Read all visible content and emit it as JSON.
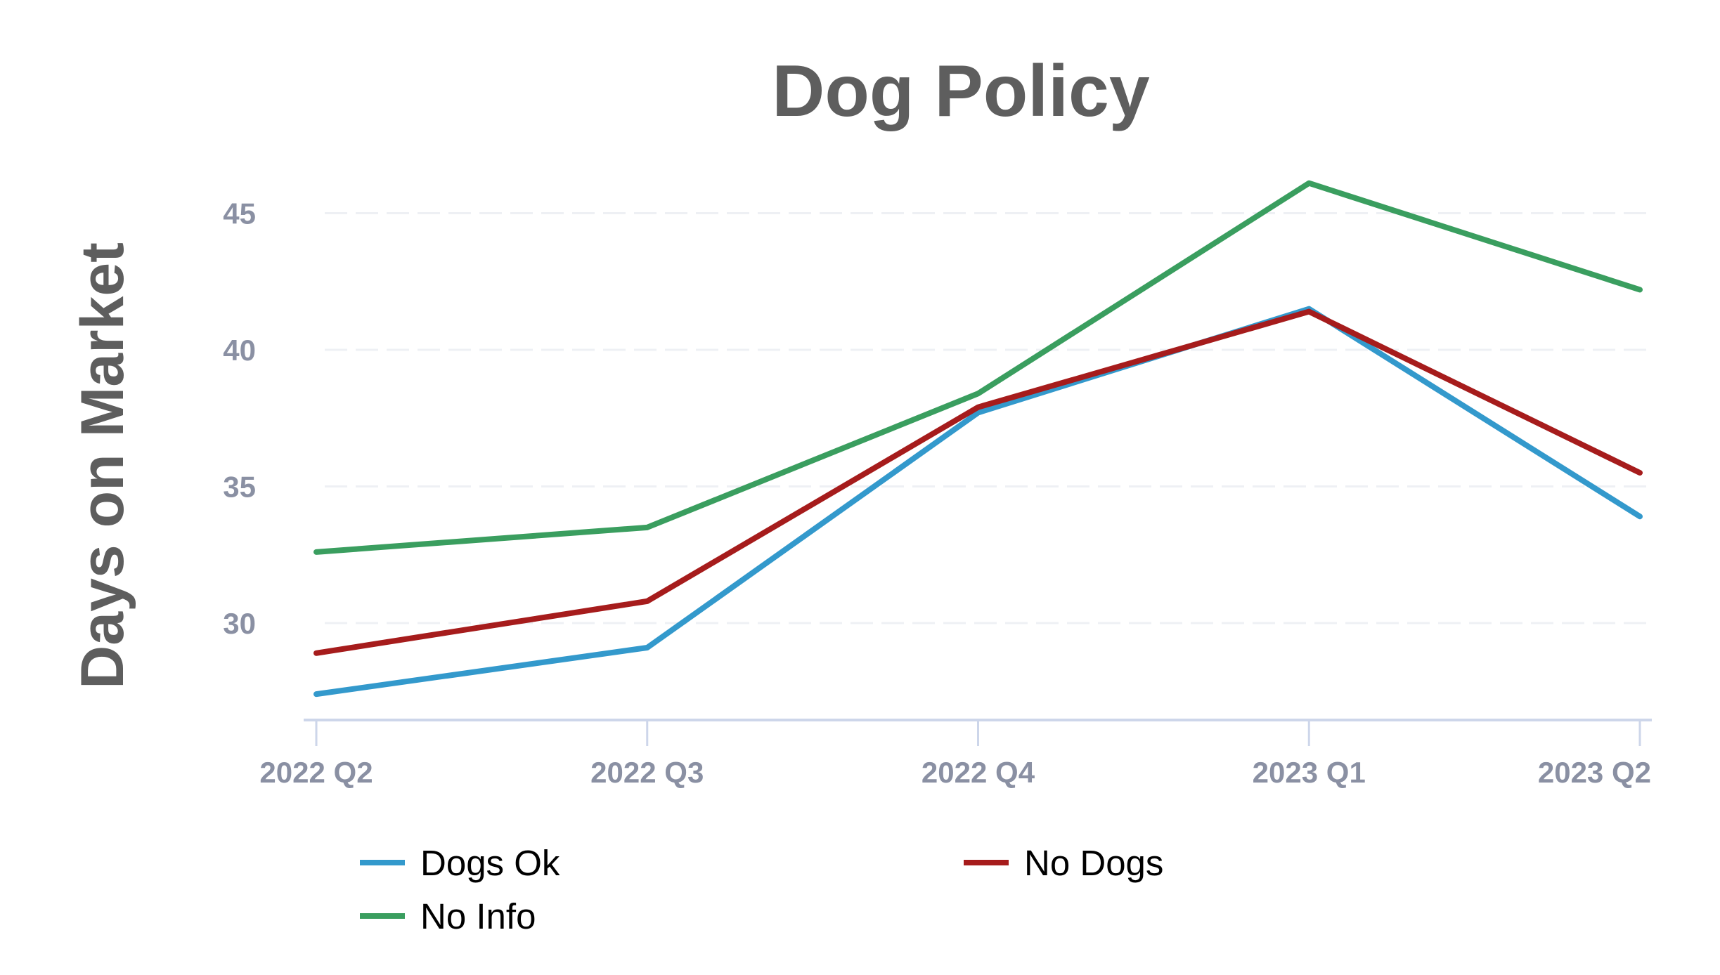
{
  "chart_data": {
    "type": "line",
    "title": "Dog Policy",
    "xlabel": "",
    "ylabel": "Days on Market",
    "categories": [
      "2022 Q2",
      "2022 Q3",
      "2022 Q4",
      "2023 Q1",
      "2023 Q2"
    ],
    "yticks": [
      30,
      35,
      40,
      45
    ],
    "ylim": [
      26.45,
      46.5
    ],
    "grid": true,
    "legend_position": "bottom",
    "series": [
      {
        "name": "Dogs Ok",
        "color": "#3399cc",
        "values": [
          27.4,
          29.1,
          37.7,
          41.5,
          33.9
        ]
      },
      {
        "name": "No Dogs",
        "color": "#a61c1c",
        "values": [
          28.9,
          30.8,
          37.9,
          41.4,
          35.5
        ]
      },
      {
        "name": "No Info",
        "color": "#3a9e5f",
        "values": [
          32.6,
          33.5,
          38.4,
          46.1,
          42.2
        ]
      }
    ]
  }
}
